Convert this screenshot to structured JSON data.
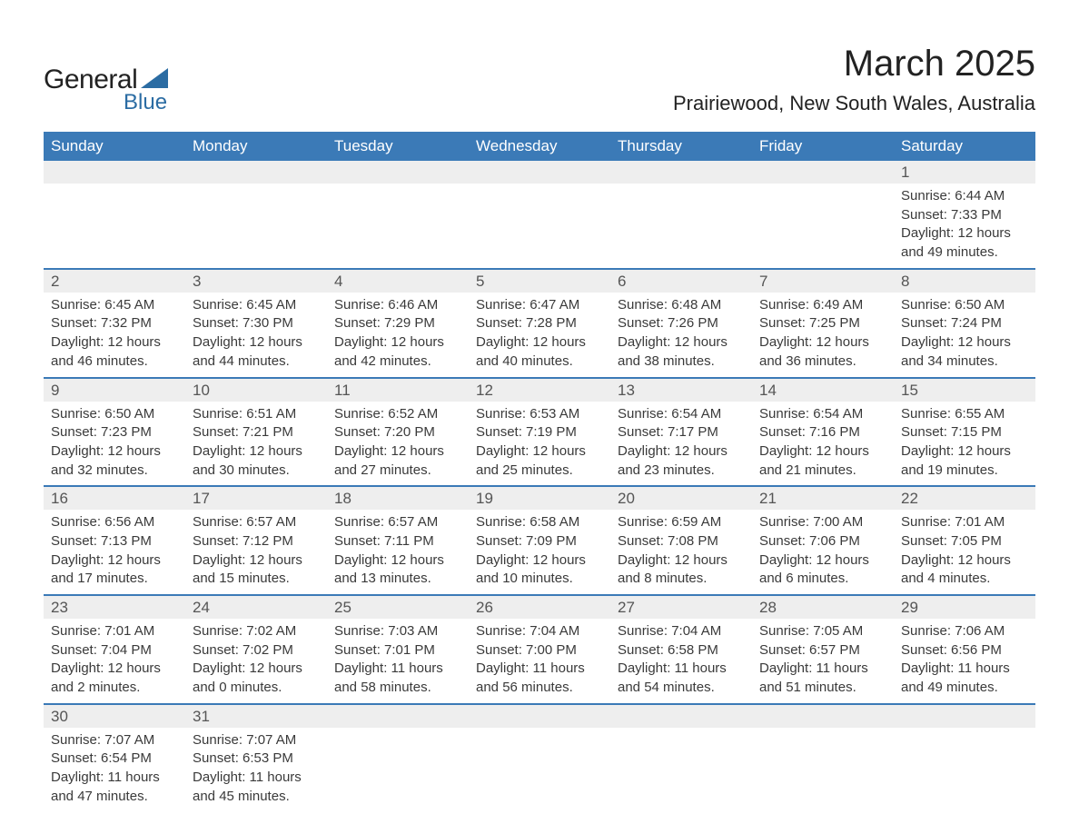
{
  "logo": {
    "general": "General",
    "blue": "Blue",
    "tri_color": "#2b6ca3"
  },
  "title": "March 2025",
  "location": "Prairiewood, New South Wales, Australia",
  "colors": {
    "header_bg": "#3b7ab7",
    "header_fg": "#ffffff",
    "daynum_bg": "#eeeeee",
    "rule": "#3b7ab7",
    "text": "#3a3a3a"
  },
  "weekdays": [
    "Sunday",
    "Monday",
    "Tuesday",
    "Wednesday",
    "Thursday",
    "Friday",
    "Saturday"
  ],
  "weeks": [
    [
      null,
      null,
      null,
      null,
      null,
      null,
      {
        "n": "1",
        "sr": "Sunrise: 6:44 AM",
        "ss": "Sunset: 7:33 PM",
        "dl": "Daylight: 12 hours and 49 minutes."
      }
    ],
    [
      {
        "n": "2",
        "sr": "Sunrise: 6:45 AM",
        "ss": "Sunset: 7:32 PM",
        "dl": "Daylight: 12 hours and 46 minutes."
      },
      {
        "n": "3",
        "sr": "Sunrise: 6:45 AM",
        "ss": "Sunset: 7:30 PM",
        "dl": "Daylight: 12 hours and 44 minutes."
      },
      {
        "n": "4",
        "sr": "Sunrise: 6:46 AM",
        "ss": "Sunset: 7:29 PM",
        "dl": "Daylight: 12 hours and 42 minutes."
      },
      {
        "n": "5",
        "sr": "Sunrise: 6:47 AM",
        "ss": "Sunset: 7:28 PM",
        "dl": "Daylight: 12 hours and 40 minutes."
      },
      {
        "n": "6",
        "sr": "Sunrise: 6:48 AM",
        "ss": "Sunset: 7:26 PM",
        "dl": "Daylight: 12 hours and 38 minutes."
      },
      {
        "n": "7",
        "sr": "Sunrise: 6:49 AM",
        "ss": "Sunset: 7:25 PM",
        "dl": "Daylight: 12 hours and 36 minutes."
      },
      {
        "n": "8",
        "sr": "Sunrise: 6:50 AM",
        "ss": "Sunset: 7:24 PM",
        "dl": "Daylight: 12 hours and 34 minutes."
      }
    ],
    [
      {
        "n": "9",
        "sr": "Sunrise: 6:50 AM",
        "ss": "Sunset: 7:23 PM",
        "dl": "Daylight: 12 hours and 32 minutes."
      },
      {
        "n": "10",
        "sr": "Sunrise: 6:51 AM",
        "ss": "Sunset: 7:21 PM",
        "dl": "Daylight: 12 hours and 30 minutes."
      },
      {
        "n": "11",
        "sr": "Sunrise: 6:52 AM",
        "ss": "Sunset: 7:20 PM",
        "dl": "Daylight: 12 hours and 27 minutes."
      },
      {
        "n": "12",
        "sr": "Sunrise: 6:53 AM",
        "ss": "Sunset: 7:19 PM",
        "dl": "Daylight: 12 hours and 25 minutes."
      },
      {
        "n": "13",
        "sr": "Sunrise: 6:54 AM",
        "ss": "Sunset: 7:17 PM",
        "dl": "Daylight: 12 hours and 23 minutes."
      },
      {
        "n": "14",
        "sr": "Sunrise: 6:54 AM",
        "ss": "Sunset: 7:16 PM",
        "dl": "Daylight: 12 hours and 21 minutes."
      },
      {
        "n": "15",
        "sr": "Sunrise: 6:55 AM",
        "ss": "Sunset: 7:15 PM",
        "dl": "Daylight: 12 hours and 19 minutes."
      }
    ],
    [
      {
        "n": "16",
        "sr": "Sunrise: 6:56 AM",
        "ss": "Sunset: 7:13 PM",
        "dl": "Daylight: 12 hours and 17 minutes."
      },
      {
        "n": "17",
        "sr": "Sunrise: 6:57 AM",
        "ss": "Sunset: 7:12 PM",
        "dl": "Daylight: 12 hours and 15 minutes."
      },
      {
        "n": "18",
        "sr": "Sunrise: 6:57 AM",
        "ss": "Sunset: 7:11 PM",
        "dl": "Daylight: 12 hours and 13 minutes."
      },
      {
        "n": "19",
        "sr": "Sunrise: 6:58 AM",
        "ss": "Sunset: 7:09 PM",
        "dl": "Daylight: 12 hours and 10 minutes."
      },
      {
        "n": "20",
        "sr": "Sunrise: 6:59 AM",
        "ss": "Sunset: 7:08 PM",
        "dl": "Daylight: 12 hours and 8 minutes."
      },
      {
        "n": "21",
        "sr": "Sunrise: 7:00 AM",
        "ss": "Sunset: 7:06 PM",
        "dl": "Daylight: 12 hours and 6 minutes."
      },
      {
        "n": "22",
        "sr": "Sunrise: 7:01 AM",
        "ss": "Sunset: 7:05 PM",
        "dl": "Daylight: 12 hours and 4 minutes."
      }
    ],
    [
      {
        "n": "23",
        "sr": "Sunrise: 7:01 AM",
        "ss": "Sunset: 7:04 PM",
        "dl": "Daylight: 12 hours and 2 minutes."
      },
      {
        "n": "24",
        "sr": "Sunrise: 7:02 AM",
        "ss": "Sunset: 7:02 PM",
        "dl": "Daylight: 12 hours and 0 minutes."
      },
      {
        "n": "25",
        "sr": "Sunrise: 7:03 AM",
        "ss": "Sunset: 7:01 PM",
        "dl": "Daylight: 11 hours and 58 minutes."
      },
      {
        "n": "26",
        "sr": "Sunrise: 7:04 AM",
        "ss": "Sunset: 7:00 PM",
        "dl": "Daylight: 11 hours and 56 minutes."
      },
      {
        "n": "27",
        "sr": "Sunrise: 7:04 AM",
        "ss": "Sunset: 6:58 PM",
        "dl": "Daylight: 11 hours and 54 minutes."
      },
      {
        "n": "28",
        "sr": "Sunrise: 7:05 AM",
        "ss": "Sunset: 6:57 PM",
        "dl": "Daylight: 11 hours and 51 minutes."
      },
      {
        "n": "29",
        "sr": "Sunrise: 7:06 AM",
        "ss": "Sunset: 6:56 PM",
        "dl": "Daylight: 11 hours and 49 minutes."
      }
    ],
    [
      {
        "n": "30",
        "sr": "Sunrise: 7:07 AM",
        "ss": "Sunset: 6:54 PM",
        "dl": "Daylight: 11 hours and 47 minutes."
      },
      {
        "n": "31",
        "sr": "Sunrise: 7:07 AM",
        "ss": "Sunset: 6:53 PM",
        "dl": "Daylight: 11 hours and 45 minutes."
      },
      null,
      null,
      null,
      null,
      null
    ]
  ]
}
